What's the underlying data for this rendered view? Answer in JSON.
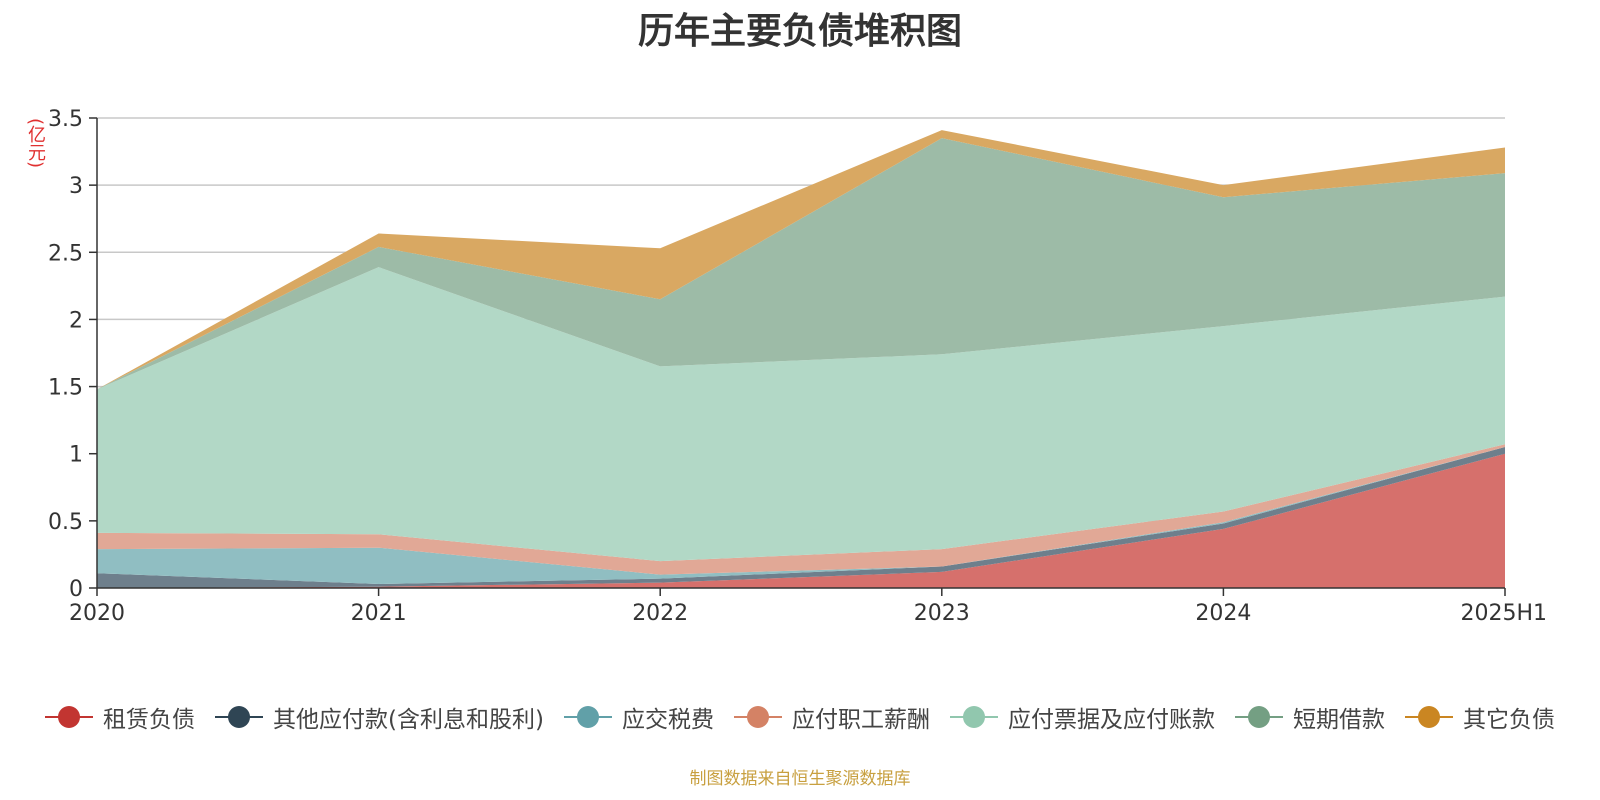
{
  "chart_data": {
    "type": "area",
    "stacked": true,
    "title": "历年主要负债堆积图",
    "unit_label": "(亿元)",
    "source": "制图数据来自恒生聚源数据库",
    "x": [
      "2020",
      "2021",
      "2022",
      "2023",
      "2024",
      "2025H1"
    ],
    "ylim": [
      0,
      3.5
    ],
    "yticks": [
      "0",
      "0.5",
      "1",
      "1.5",
      "2",
      "2.5",
      "3",
      "3.5"
    ],
    "grid": true,
    "legend_position": "bottom",
    "series": [
      {
        "name": "租赁负债",
        "color": "#c23531",
        "fill": "#d6706c",
        "values": [
          0.0,
          0.01,
          0.04,
          0.12,
          0.44,
          1.0
        ]
      },
      {
        "name": "其他应付款(含利息和股利)",
        "color": "#2f4554",
        "fill": "#6e7f8c",
        "values": [
          0.11,
          0.02,
          0.03,
          0.04,
          0.04,
          0.05
        ]
      },
      {
        "name": "应交税费",
        "color": "#61a0a8",
        "fill": "#90bec2",
        "values": [
          0.18,
          0.27,
          0.03,
          0.0,
          0.01,
          0.0
        ]
      },
      {
        "name": "应付职工薪酬",
        "color": "#d48265",
        "fill": "#e1a896",
        "values": [
          0.12,
          0.1,
          0.1,
          0.13,
          0.08,
          0.02
        ]
      },
      {
        "name": "应付票据及应付账款",
        "color": "#91c7ae",
        "fill": "#b2d8c6",
        "values": [
          1.07,
          1.99,
          1.45,
          1.45,
          1.38,
          1.1
        ]
      },
      {
        "name": "短期借款",
        "color": "#749f83",
        "fill": "#9dbba7",
        "values": [
          0.0,
          0.15,
          0.5,
          1.61,
          0.96,
          0.92
        ]
      },
      {
        "name": "其它负债",
        "color": "#ca8622",
        "fill": "#d9a862",
        "values": [
          0.0,
          0.1,
          0.38,
          0.06,
          0.09,
          0.19
        ]
      }
    ]
  }
}
